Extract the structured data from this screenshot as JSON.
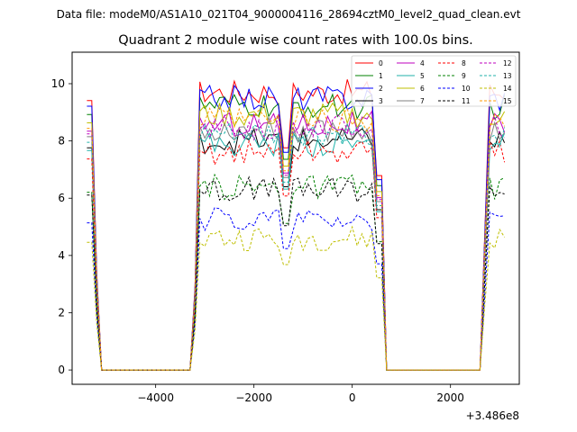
{
  "chart_data": {
    "type": "line",
    "suptitle": "Data file: modeM0/AS1A10_021T04_9000004116_28694cztM0_level2_quad_clean.evt",
    "title": "Quadrant 2 module wise count rates with 100.0s bins.",
    "xlabel": "",
    "ylabel": "",
    "x_offset_label": "+3.486e8",
    "xlim": [
      -5700,
      3400
    ],
    "ylim": [
      -0.5,
      11.1
    ],
    "xticks": [
      -4000,
      -2000,
      0,
      2000
    ],
    "xtick_labels": [
      "−4000",
      "−2000",
      "0",
      "2000"
    ],
    "yticks": [
      0,
      2,
      4,
      6,
      8,
      10
    ],
    "ytick_labels": [
      "0",
      "2",
      "4",
      "6",
      "8",
      "10"
    ],
    "legend": {
      "placement": "top-right",
      "columns": 4
    },
    "segments": [
      {
        "start": -5400,
        "end": -5200,
        "active": true
      },
      {
        "start": -5200,
        "end": -3200,
        "active": false
      },
      {
        "start": -3200,
        "end": -3100,
        "active": true
      },
      {
        "start": -3100,
        "end": 600,
        "active": true
      },
      {
        "start": 600,
        "end": 2700,
        "active": false
      },
      {
        "start": 2700,
        "end": 3100,
        "active": true
      }
    ],
    "series": [
      {
        "name": "0",
        "color": "#ff0000",
        "dash": false,
        "level": 9.7
      },
      {
        "name": "1",
        "color": "#008000",
        "dash": false,
        "level": 9.2
      },
      {
        "name": "2",
        "color": "#0000ff",
        "dash": false,
        "level": 9.5
      },
      {
        "name": "3",
        "color": "#000000",
        "dash": false,
        "level": 8.0
      },
      {
        "name": "4",
        "color": "#bf00bf",
        "dash": false,
        "level": 8.6
      },
      {
        "name": "5",
        "color": "#20b2aa",
        "dash": false,
        "level": 7.9
      },
      {
        "name": "6",
        "color": "#bfbf00",
        "dash": false,
        "level": 8.9
      },
      {
        "name": "7",
        "color": "#808080",
        "dash": false,
        "level": 8.4
      },
      {
        "name": "8",
        "color": "#ff0000",
        "dash": true,
        "level": 7.6
      },
      {
        "name": "9",
        "color": "#008000",
        "dash": true,
        "level": 6.4
      },
      {
        "name": "10",
        "color": "#0000ff",
        "dash": true,
        "level": 5.3
      },
      {
        "name": "11",
        "color": "#000000",
        "dash": true,
        "level": 6.3
      },
      {
        "name": "12",
        "color": "#bf00bf",
        "dash": true,
        "level": 8.5
      },
      {
        "name": "13",
        "color": "#20b2aa",
        "dash": true,
        "level": 8.2
      },
      {
        "name": "14",
        "color": "#bfbf00",
        "dash": true,
        "level": 4.6
      },
      {
        "name": "15",
        "color": "#ff9900",
        "dash": true,
        "level": 8.7
      }
    ]
  }
}
